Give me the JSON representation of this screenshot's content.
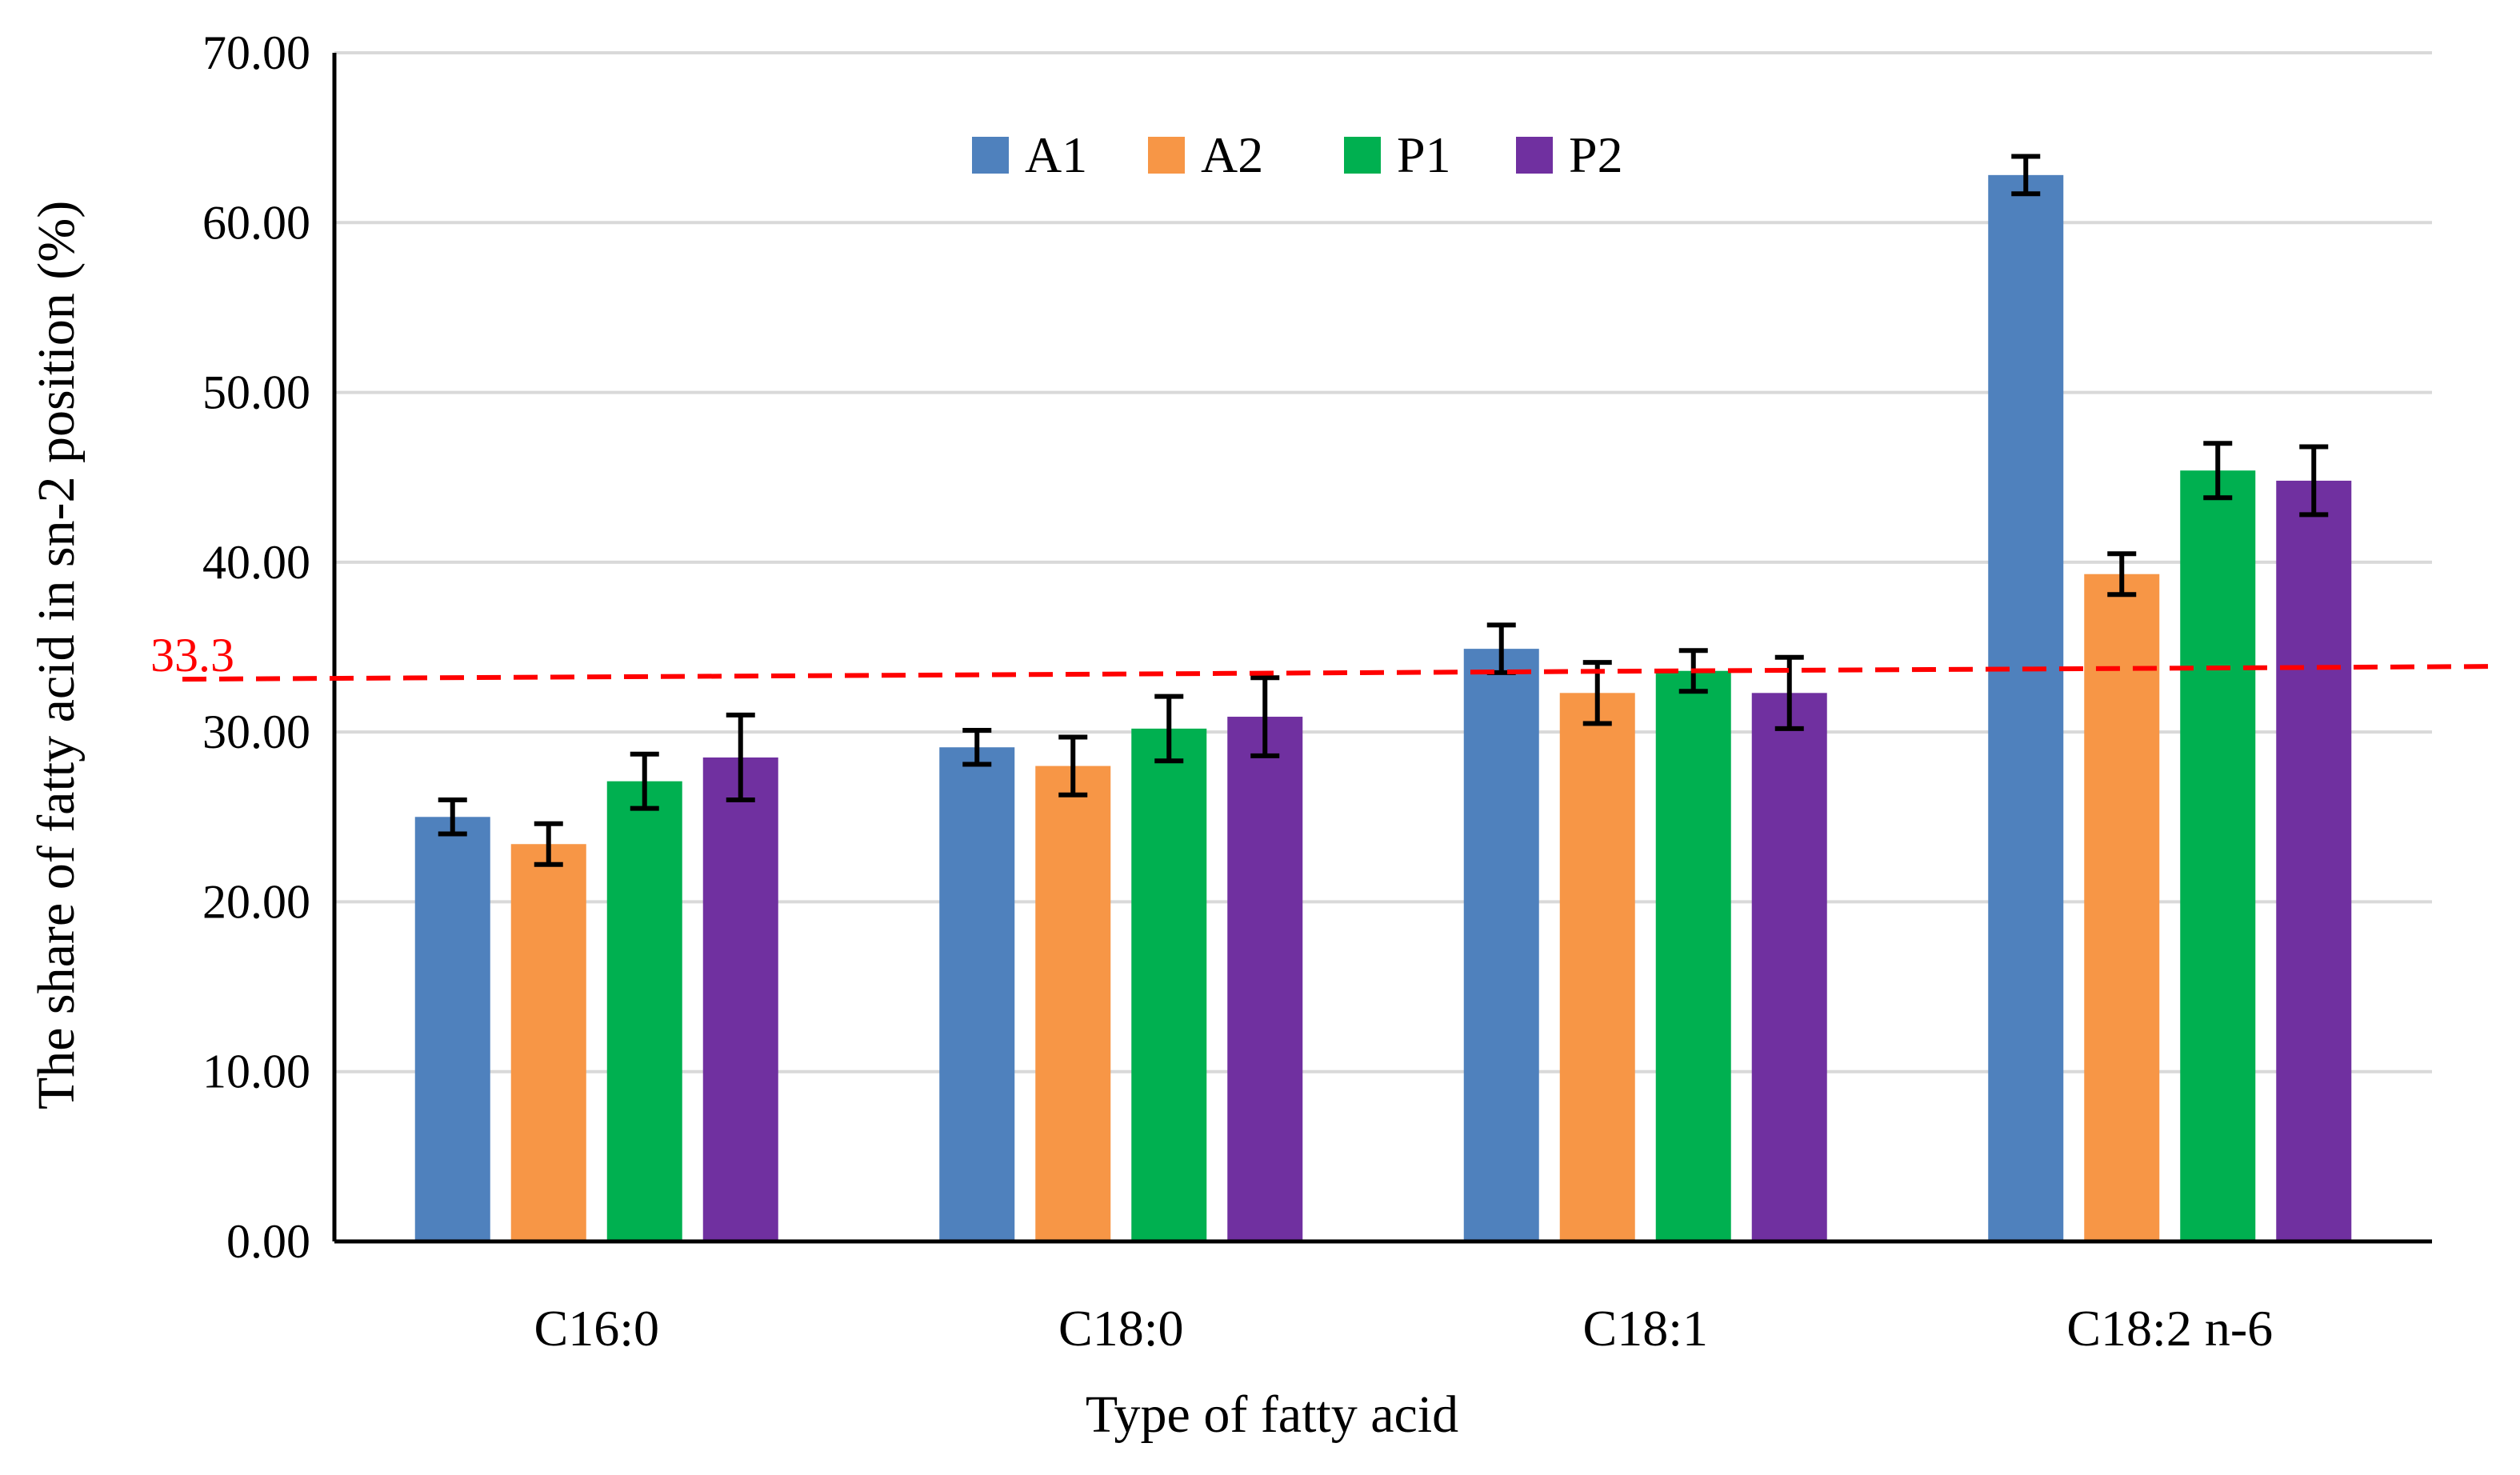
{
  "chart_data": {
    "type": "bar",
    "xlabel": "Type of fatty acid",
    "ylabel": "The share of fatty acid in sn-2 position (%)",
    "ylim": [
      0,
      70
    ],
    "yticks": [
      0,
      10,
      20,
      30,
      40,
      50,
      60,
      70
    ],
    "ytick_labels": [
      "0.00",
      "10.00",
      "20.00",
      "30.00",
      "40.00",
      "50.00",
      "60.00",
      "70.00"
    ],
    "grid": true,
    "legend_position": "top-center",
    "categories": [
      "C16:0",
      "C18:0",
      "C18:1",
      "C18:2 n-6"
    ],
    "series": [
      {
        "name": "A1",
        "color": "#4F81BD",
        "values": [
          25.0,
          29.1,
          34.9,
          62.8
        ],
        "errors": [
          1.0,
          1.0,
          1.4,
          1.1
        ]
      },
      {
        "name": "A2",
        "color": "#F79646",
        "values": [
          23.4,
          28.0,
          32.3,
          39.3
        ],
        "errors": [
          1.2,
          1.7,
          1.8,
          1.2
        ]
      },
      {
        "name": "P1",
        "color": "#00B050",
        "values": [
          27.1,
          30.2,
          33.6,
          45.4
        ],
        "errors": [
          1.6,
          1.9,
          1.2,
          1.6
        ]
      },
      {
        "name": "P2",
        "color": "#7030A0",
        "values": [
          28.5,
          30.9,
          32.3,
          44.8
        ],
        "errors": [
          2.5,
          2.3,
          2.1,
          2.0
        ]
      }
    ],
    "reference_line": {
      "value": 33.3,
      "label": "33.3",
      "color": "#FF0000",
      "style": "dashed"
    }
  }
}
